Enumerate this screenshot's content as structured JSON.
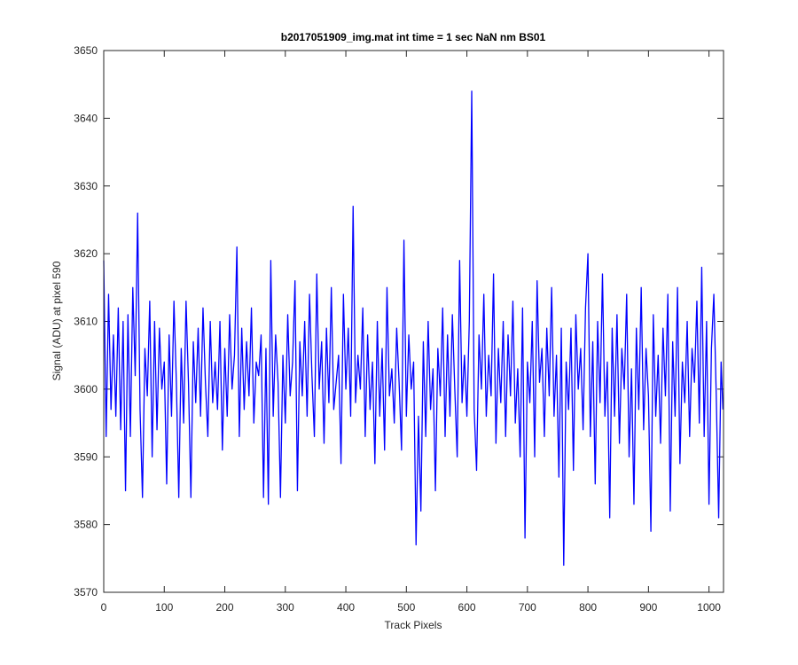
{
  "chart_data": {
    "type": "line",
    "title": "b2017051909_img.mat int time = 1 sec  NaN nm BS01",
    "xlabel": "Track Pixels",
    "ylabel": "Signal (ADU) at pixel 590",
    "xlim": [
      0,
      1024
    ],
    "ylim": [
      3570,
      3650
    ],
    "xticks": [
      0,
      100,
      200,
      300,
      400,
      500,
      600,
      700,
      800,
      900,
      1000
    ],
    "yticks": [
      3570,
      3580,
      3590,
      3600,
      3610,
      3620,
      3630,
      3640,
      3650
    ],
    "color": "#0000ff",
    "x": [
      0,
      4,
      8,
      12,
      16,
      20,
      24,
      28,
      32,
      36,
      40,
      44,
      48,
      52,
      56,
      60,
      64,
      68,
      72,
      76,
      80,
      84,
      88,
      92,
      96,
      100,
      104,
      108,
      112,
      116,
      120,
      124,
      128,
      132,
      136,
      140,
      144,
      148,
      152,
      156,
      160,
      164,
      168,
      172,
      176,
      180,
      184,
      188,
      192,
      196,
      200,
      204,
      208,
      212,
      216,
      220,
      224,
      228,
      232,
      236,
      240,
      244,
      248,
      252,
      256,
      260,
      264,
      268,
      272,
      276,
      280,
      284,
      288,
      292,
      296,
      300,
      304,
      308,
      312,
      316,
      320,
      324,
      328,
      332,
      336,
      340,
      344,
      348,
      352,
      356,
      360,
      364,
      368,
      372,
      376,
      380,
      384,
      388,
      392,
      396,
      400,
      404,
      408,
      412,
      416,
      420,
      424,
      428,
      432,
      436,
      440,
      444,
      448,
      452,
      456,
      460,
      464,
      468,
      472,
      476,
      480,
      484,
      488,
      492,
      496,
      500,
      504,
      508,
      512,
      516,
      520,
      524,
      528,
      532,
      536,
      540,
      544,
      548,
      552,
      556,
      560,
      564,
      568,
      572,
      576,
      580,
      584,
      588,
      592,
      596,
      600,
      604,
      608,
      612,
      616,
      620,
      624,
      628,
      632,
      636,
      640,
      644,
      648,
      652,
      656,
      660,
      664,
      668,
      672,
      676,
      680,
      684,
      688,
      692,
      696,
      700,
      704,
      708,
      712,
      716,
      720,
      724,
      728,
      732,
      736,
      740,
      744,
      748,
      752,
      756,
      760,
      764,
      768,
      772,
      776,
      780,
      784,
      788,
      792,
      796,
      800,
      804,
      808,
      812,
      816,
      820,
      824,
      828,
      832,
      836,
      840,
      844,
      848,
      852,
      856,
      860,
      864,
      868,
      872,
      876,
      880,
      884,
      888,
      892,
      896,
      900,
      904,
      908,
      912,
      916,
      920,
      924,
      928,
      932,
      936,
      940,
      944,
      948,
      952,
      956,
      960,
      964,
      968,
      972,
      976,
      980,
      984,
      988,
      992,
      996,
      1000,
      1004,
      1008,
      1012,
      1016,
      1020,
      1023
    ],
    "values": [
      3619,
      3593,
      3614,
      3597,
      3608,
      3596,
      3612,
      3594,
      3610,
      3585,
      3611,
      3593,
      3615,
      3602,
      3626,
      3597,
      3584,
      3606,
      3599,
      3613,
      3590,
      3610,
      3594,
      3609,
      3600,
      3604,
      3586,
      3608,
      3596,
      3613,
      3601,
      3584,
      3606,
      3595,
      3613,
      3601,
      3584,
      3607,
      3598,
      3609,
      3596,
      3612,
      3601,
      3593,
      3610,
      3598,
      3604,
      3597,
      3610,
      3591,
      3606,
      3596,
      3611,
      3600,
      3605,
      3621,
      3593,
      3609,
      3597,
      3607,
      3599,
      3612,
      3595,
      3604,
      3602,
      3608,
      3584,
      3606,
      3583,
      3619,
      3596,
      3608,
      3601,
      3584,
      3605,
      3595,
      3611,
      3599,
      3604,
      3616,
      3585,
      3607,
      3599,
      3610,
      3596,
      3614,
      3602,
      3593,
      3617,
      3600,
      3607,
      3592,
      3609,
      3598,
      3615,
      3597,
      3601,
      3605,
      3589,
      3614,
      3600,
      3609,
      3596,
      3627,
      3598,
      3605,
      3600,
      3612,
      3593,
      3608,
      3597,
      3604,
      3589,
      3610,
      3596,
      3606,
      3591,
      3615,
      3599,
      3603,
      3595,
      3609,
      3601,
      3591,
      3622,
      3596,
      3608,
      3600,
      3604,
      3577,
      3596,
      3582,
      3607,
      3593,
      3610,
      3597,
      3603,
      3585,
      3606,
      3599,
      3612,
      3593,
      3608,
      3596,
      3611,
      3600,
      3590,
      3619,
      3598,
      3605,
      3596,
      3610,
      3644,
      3597,
      3588,
      3608,
      3600,
      3614,
      3596,
      3605,
      3599,
      3617,
      3592,
      3606,
      3598,
      3610,
      3593,
      3608,
      3599,
      3613,
      3595,
      3603,
      3590,
      3612,
      3578,
      3604,
      3598,
      3610,
      3590,
      3616,
      3601,
      3606,
      3593,
      3609,
      3599,
      3615,
      3596,
      3605,
      3587,
      3609,
      3574,
      3604,
      3597,
      3609,
      3588,
      3611,
      3600,
      3606,
      3594,
      3612,
      3620,
      3593,
      3607,
      3586,
      3610,
      3598,
      3617,
      3596,
      3604,
      3581,
      3609,
      3596,
      3611,
      3592,
      3606,
      3600,
      3614,
      3590,
      3603,
      3583,
      3609,
      3597,
      3615,
      3594,
      3606,
      3599,
      3579,
      3611,
      3596,
      3605,
      3592,
      3609,
      3599,
      3614,
      3582,
      3607,
      3596,
      3615,
      3589,
      3604,
      3598,
      3610,
      3593,
      3606,
      3601,
      3613,
      3595,
      3618,
      3593,
      3610,
      3583,
      3606,
      3614,
      3599,
      3581,
      3604,
      3597
    ]
  }
}
